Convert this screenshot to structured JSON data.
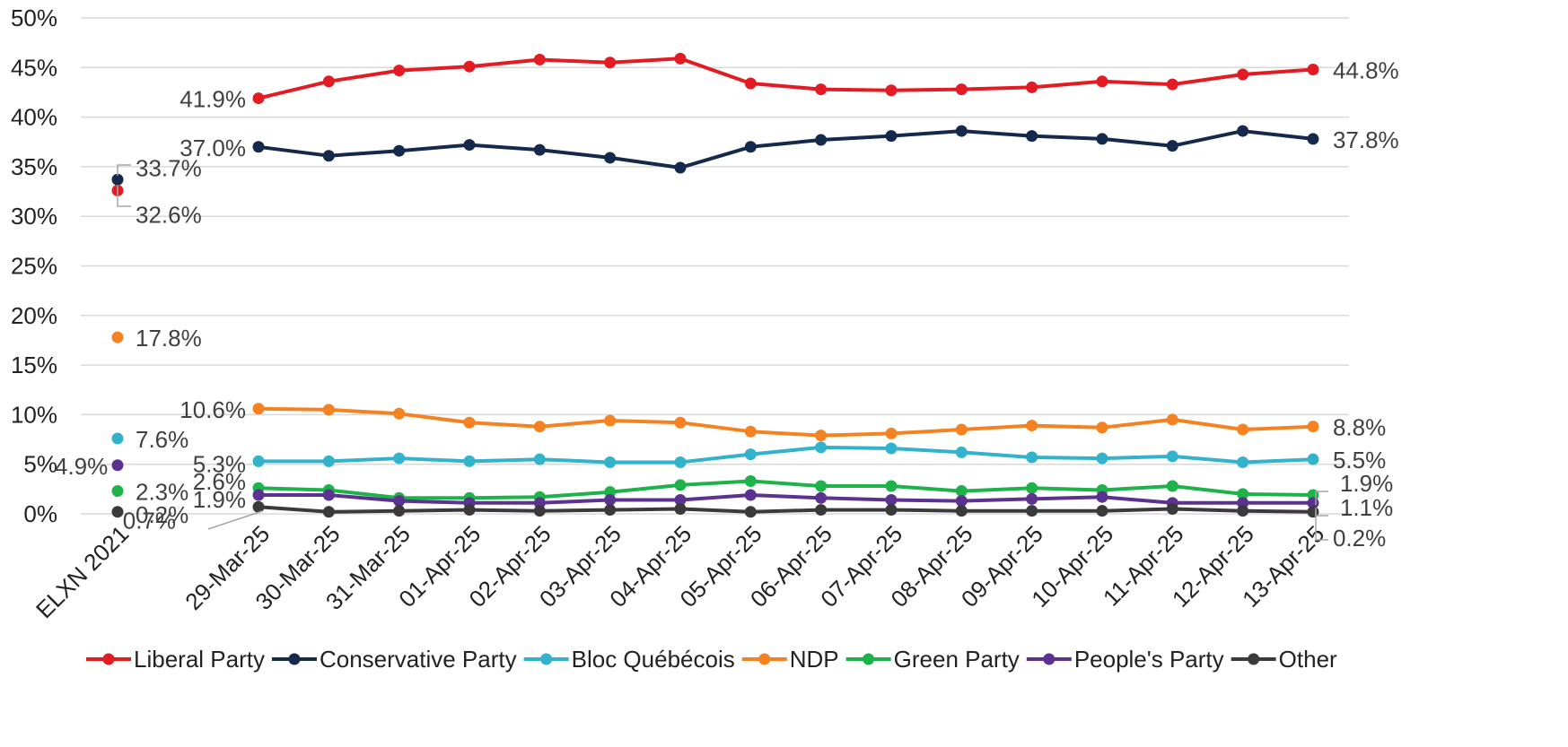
{
  "chart_data": {
    "type": "line",
    "title": "",
    "xlabel": "",
    "ylabel": "",
    "ylim": [
      0,
      50
    ],
    "y_ticks": [
      "0%",
      "5%",
      "10%",
      "15%",
      "20%",
      "25%",
      "30%",
      "35%",
      "40%",
      "45%",
      "50%"
    ],
    "y_tick_values": [
      0,
      5,
      10,
      15,
      20,
      25,
      30,
      35,
      40,
      45,
      50
    ],
    "grid": true,
    "legend_position": "bottom",
    "baseline_category": "ELXN 2021",
    "categories": [
      "29-Mar-25",
      "30-Mar-25",
      "31-Mar-25",
      "01-Apr-25",
      "02-Apr-25",
      "03-Apr-25",
      "04-Apr-25",
      "05-Apr-25",
      "06-Apr-25",
      "07-Apr-25",
      "08-Apr-25",
      "09-Apr-25",
      "10-Apr-25",
      "11-Apr-25",
      "12-Apr-25",
      "13-Apr-25"
    ],
    "series": [
      {
        "name": "Liberal Party",
        "color": "#E31C23",
        "baseline": 32.6,
        "baseline_label": "32.6%",
        "first_label": "41.9%",
        "last_label": "44.8%",
        "values": [
          41.9,
          43.6,
          44.7,
          45.1,
          45.8,
          45.5,
          45.9,
          43.4,
          42.8,
          42.7,
          42.8,
          43.0,
          43.6,
          43.3,
          44.3,
          44.8
        ]
      },
      {
        "name": "Conservative Party",
        "color": "#14294B",
        "baseline": 33.7,
        "baseline_label": "33.7%",
        "first_label": "37.0%",
        "last_label": "37.8%",
        "values": [
          37.0,
          36.1,
          36.6,
          37.2,
          36.7,
          35.9,
          34.9,
          37.0,
          37.7,
          38.1,
          38.6,
          38.1,
          37.8,
          37.1,
          38.6,
          37.8
        ]
      },
      {
        "name": "Bloc Québécois",
        "color": "#33B2CC",
        "baseline": 7.6,
        "baseline_label": "7.6%",
        "first_label": "5.3%",
        "last_label": "5.5%",
        "values": [
          5.3,
          5.3,
          5.6,
          5.3,
          5.5,
          5.2,
          5.2,
          6.0,
          6.7,
          6.6,
          6.2,
          5.7,
          5.6,
          5.8,
          5.2,
          5.5
        ]
      },
      {
        "name": "NDP",
        "color": "#F58220",
        "baseline": 17.8,
        "baseline_label": "17.8%",
        "first_label": "10.6%",
        "last_label": "8.8%",
        "values": [
          10.6,
          10.5,
          10.1,
          9.2,
          8.8,
          9.4,
          9.2,
          8.3,
          7.9,
          8.1,
          8.5,
          8.9,
          8.7,
          9.5,
          8.5,
          8.8
        ]
      },
      {
        "name": "Green Party",
        "color": "#1DB24A",
        "baseline": 2.3,
        "baseline_label": "2.3%",
        "first_label": "2.6%",
        "last_label": "1.9%",
        "values": [
          2.6,
          2.4,
          1.6,
          1.6,
          1.7,
          2.2,
          2.9,
          3.3,
          2.8,
          2.8,
          2.3,
          2.6,
          2.4,
          2.8,
          2.0,
          1.9
        ]
      },
      {
        "name": "People's Party",
        "color": "#5C3291",
        "baseline": 4.9,
        "baseline_label": "4.9%",
        "first_label": "1.9%",
        "last_label": "1.1%",
        "values": [
          1.9,
          1.9,
          1.3,
          1.1,
          1.1,
          1.4,
          1.4,
          1.9,
          1.6,
          1.4,
          1.3,
          1.5,
          1.7,
          1.1,
          1.1,
          1.1
        ]
      },
      {
        "name": "Other",
        "color": "#3A3A3A",
        "baseline": 0.2,
        "baseline_label": "0.2%",
        "first_label": "0.7%",
        "last_label": "0.2%",
        "values": [
          0.7,
          0.2,
          0.3,
          0.4,
          0.3,
          0.4,
          0.5,
          0.2,
          0.4,
          0.4,
          0.3,
          0.3,
          0.3,
          0.5,
          0.3,
          0.2
        ]
      }
    ]
  }
}
